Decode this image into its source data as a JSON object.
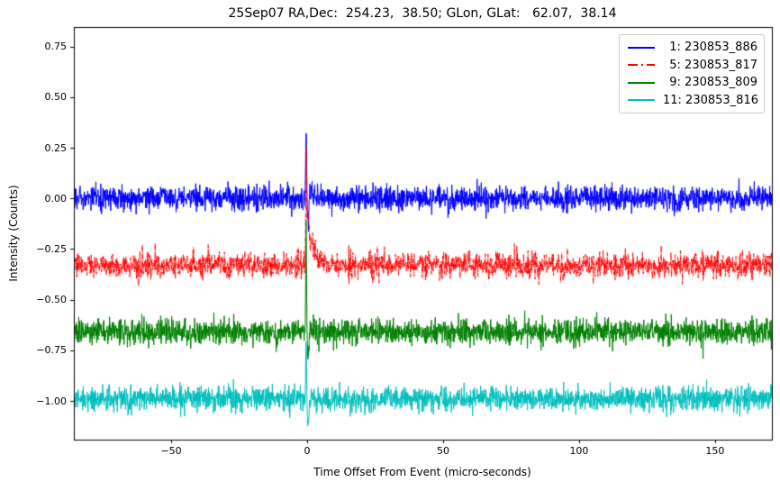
{
  "chart_data": {
    "type": "line",
    "title": "25Sep07 RA,Dec:  254.23,  38.50; GLon, GLat:   62.07,  38.14",
    "xlabel": "Time Offset From Event (micro-seconds)",
    "ylabel": "Intensity (Counts)",
    "xlim": [
      -85.8,
      170.9
    ],
    "ylim": [
      -1.191,
      0.846
    ],
    "grid": false,
    "legend_position": "upper-right",
    "background_color": "#ffffff",
    "axes_color": "#000000",
    "event_time_microseconds": 0,
    "samples_per_microsecond": 10,
    "x_ticks": {
      "values": [
        -50,
        0,
        50,
        100,
        150
      ],
      "labels": [
        "−50",
        "0",
        "50",
        "100",
        "150"
      ]
    },
    "y_ticks": {
      "values": [
        0.75,
        0.5,
        0.25,
        0.0,
        -0.25,
        -0.5,
        -0.75,
        -1.0
      ],
      "labels": [
        "0.75",
        "0.50",
        "0.25",
        "0.00",
        "−0.25",
        "−0.50",
        "−0.75",
        "−1.00"
      ]
    },
    "series": [
      {
        "name": " 1: 230853_886",
        "color": "#0000ff",
        "linestyle": "solid",
        "baseline": 0.0,
        "noise_sigma": 0.029,
        "seed": 7,
        "spike": {
          "t0": -0.4,
          "peak": 0.35,
          "peak_sigma": 0.14,
          "tail_amp": 0.1,
          "tail_tau": 1.2,
          "undershoot": -0.19,
          "undershoot_center": 0.7,
          "undershoot_sigma": 0.3
        }
      },
      {
        "name": " 5: 230853_817",
        "color": "#ff0000",
        "linestyle": "dashdot",
        "baseline": -0.33,
        "noise_sigma": 0.03,
        "seed": 13,
        "spike": {
          "t0": -0.4,
          "peak": 0.44,
          "peak_sigma": 0.16,
          "tail_amp": 0.3,
          "tail_tau": 2.2,
          "undershoot": 0.0,
          "undershoot_center": 0.7,
          "undershoot_sigma": 0.3
        }
      },
      {
        "name": " 9: 230853_809",
        "color": "#008000",
        "linestyle": "solid",
        "baseline": -0.66,
        "noise_sigma": 0.031,
        "seed": 21,
        "spike": {
          "t0": -0.4,
          "peak": 0.49,
          "peak_sigma": 0.14,
          "tail_amp": 0.12,
          "tail_tau": 1.4,
          "undershoot": -0.18,
          "undershoot_center": 0.8,
          "undershoot_sigma": 0.35
        }
      },
      {
        "name": "11: 230853_816",
        "color": "#00bfbf",
        "linestyle": "solid",
        "baseline": -0.99,
        "noise_sigma": 0.029,
        "seed": 42,
        "spike": {
          "t0": -0.4,
          "peak": 0.33,
          "peak_sigma": 0.13,
          "tail_amp": 0.08,
          "tail_tau": 1.1,
          "undershoot": -0.17,
          "undershoot_center": 0.8,
          "undershoot_sigma": 0.35
        }
      }
    ]
  }
}
